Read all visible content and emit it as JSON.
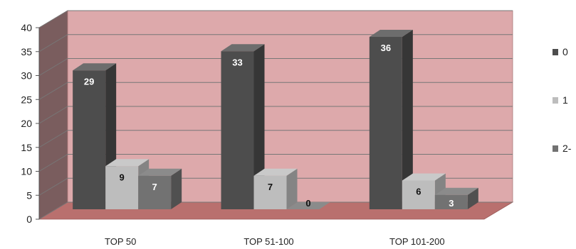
{
  "chart_data": {
    "type": "bar",
    "categories": [
      "TOP 50",
      "TOP 51-100",
      "TOP 101-200"
    ],
    "series": [
      {
        "name": "0",
        "values": [
          29,
          33,
          36
        ]
      },
      {
        "name": "1",
        "values": [
          9,
          7,
          6
        ]
      },
      {
        "name": "2-",
        "values": [
          7,
          0,
          3
        ]
      }
    ],
    "ylim": [
      0,
      40
    ],
    "yticks": [
      0,
      5,
      10,
      15,
      20,
      25,
      30,
      35,
      40
    ],
    "grid": true,
    "legend": "right",
    "three_d": true
  },
  "colors": {
    "series": [
      "#4d4d4d",
      "#bdbdbd",
      "#727272"
    ],
    "wall": "#dda9ab",
    "floor": "#b9706e",
    "grid": "#777777"
  }
}
